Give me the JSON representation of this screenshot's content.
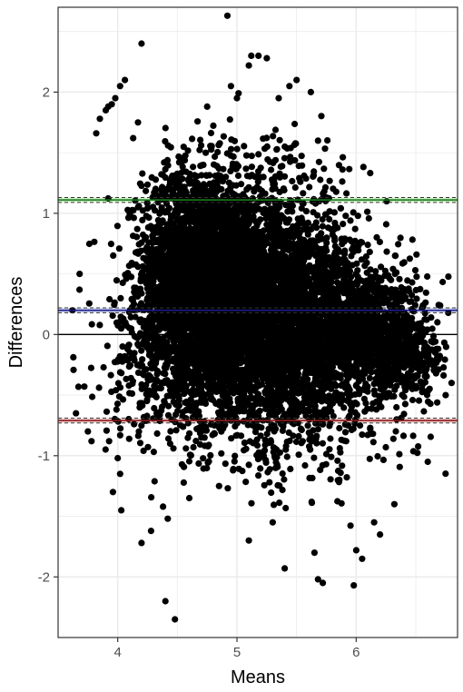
{
  "chart_data": {
    "type": "scatter",
    "title": "",
    "xlabel": "Means",
    "ylabel": "Differences",
    "xlim": [
      3.5,
      6.85
    ],
    "ylim": [
      -2.5,
      2.7
    ],
    "x_ticks": [
      4,
      5,
      6
    ],
    "x_tick_labels": [
      "4",
      "5",
      "6"
    ],
    "y_ticks": [
      -2,
      -1,
      0,
      1,
      2
    ],
    "y_tick_labels": [
      "-2",
      "-1",
      "0",
      "1",
      "2"
    ],
    "x_minor_ticks": [
      3.5,
      4.5,
      5.5,
      6.5
    ],
    "y_minor_ticks": [
      -1.5,
      -0.5,
      0.5,
      1.5,
      2.5
    ],
    "grid": true,
    "theme": "bw",
    "colors": {
      "points": "#000000",
      "zero_line": "#000000",
      "upper_loa": "#1a7a1a",
      "upper_loa_band": "#c8f0c0",
      "bias": "#1a1a8c",
      "bias_band": "#c8d0f0",
      "lower_loa": "#8b1a1a",
      "lower_loa_band": "#f0c8c8",
      "grid": "#ebebeb",
      "panel_border": "#333333"
    },
    "reference_lines": [
      {
        "name": "zero",
        "y": 0
      },
      {
        "name": "upper limit of agreement",
        "y": 1.11
      },
      {
        "name": "bias",
        "y": 0.2
      },
      {
        "name": "lower limit of agreement",
        "y": -0.71
      }
    ],
    "outlier_points": [
      [
        4.92,
        2.63
      ],
      [
        4.2,
        2.4
      ],
      [
        5.12,
        2.3
      ],
      [
        5.18,
        2.3
      ],
      [
        5.25,
        2.28
      ],
      [
        5.1,
        2.22
      ],
      [
        4.06,
        2.1
      ],
      [
        4.02,
        2.05
      ],
      [
        3.98,
        1.95
      ],
      [
        3.95,
        1.9
      ],
      [
        3.92,
        1.88
      ],
      [
        3.9,
        1.85
      ],
      [
        4.17,
        1.75
      ],
      [
        3.85,
        1.78
      ],
      [
        3.82,
        1.66
      ],
      [
        4.13,
        1.62
      ],
      [
        5.5,
        2.1
      ],
      [
        5.44,
        2.05
      ],
      [
        5.62,
        2.0
      ],
      [
        4.95,
        2.05
      ],
      [
        4.75,
        1.88
      ],
      [
        5.35,
        1.95
      ],
      [
        5.0,
        1.95
      ],
      [
        3.68,
        0.37
      ],
      [
        3.72,
        -0.43
      ],
      [
        3.75,
        -0.8
      ],
      [
        3.65,
        -0.65
      ],
      [
        3.78,
        -0.88
      ],
      [
        4.0,
        -1.02
      ],
      [
        4.02,
        -1.15
      ],
      [
        3.96,
        -1.3
      ],
      [
        4.03,
        -1.45
      ],
      [
        4.2,
        -1.72
      ],
      [
        4.28,
        -1.62
      ],
      [
        4.38,
        -1.42
      ],
      [
        4.42,
        -1.52
      ],
      [
        4.4,
        -2.2
      ],
      [
        4.48,
        -2.35
      ],
      [
        5.1,
        -1.7
      ],
      [
        5.4,
        -1.93
      ],
      [
        5.68,
        -2.02
      ],
      [
        5.72,
        -2.05
      ],
      [
        5.98,
        -2.07
      ],
      [
        6.0,
        -1.78
      ],
      [
        6.05,
        -1.85
      ],
      [
        5.65,
        -1.8
      ],
      [
        6.15,
        -1.55
      ],
      [
        6.2,
        -1.65
      ],
      [
        6.32,
        -1.4
      ],
      [
        6.6,
        -1.05
      ],
      [
        6.75,
        -0.5
      ],
      [
        6.8,
        -0.4
      ],
      [
        4.25,
        0.3
      ],
      [
        3.62,
        0.2
      ],
      [
        4.6,
        -1.35
      ],
      [
        4.85,
        -1.25
      ],
      [
        5.3,
        -1.55
      ]
    ],
    "density_clusters": [
      {
        "cx": 4.65,
        "cy": 0.55,
        "sx": 0.22,
        "sy": 0.42,
        "n": 2400
      },
      {
        "cx": 5.05,
        "cy": 0.15,
        "sx": 0.35,
        "sy": 0.45,
        "n": 2600
      },
      {
        "cx": 5.55,
        "cy": 0.1,
        "sx": 0.3,
        "sy": 0.38,
        "n": 1500
      },
      {
        "cx": 6.15,
        "cy": 0.05,
        "sx": 0.22,
        "sy": 0.22,
        "n": 900
      },
      {
        "cx": 5.4,
        "cy": 0.75,
        "sx": 0.35,
        "sy": 0.45,
        "n": 420
      },
      {
        "cx": 5.6,
        "cy": -0.55,
        "sx": 0.45,
        "sy": 0.35,
        "n": 380
      },
      {
        "cx": 4.45,
        "cy": -0.35,
        "sx": 0.3,
        "sy": 0.35,
        "n": 320
      },
      {
        "cx": 6.45,
        "cy": -0.2,
        "sx": 0.15,
        "sy": 0.15,
        "n": 220
      }
    ]
  }
}
